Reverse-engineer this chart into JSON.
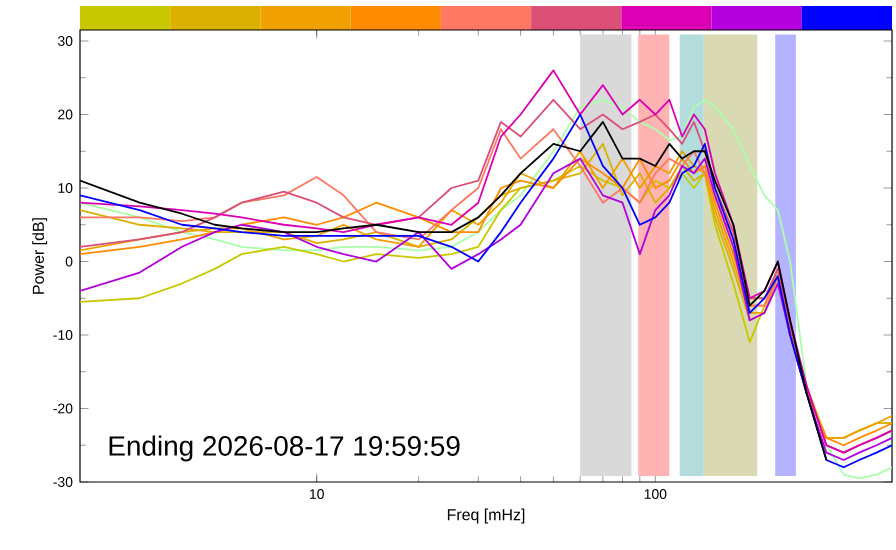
{
  "chart_data": {
    "type": "line",
    "xlabel": "Freq [mHz]",
    "ylabel": "Power [dB]",
    "log": "x",
    "x": [
      2,
      3,
      4,
      5,
      6,
      8,
      10,
      12,
      15,
      20,
      25,
      30,
      35,
      40,
      50,
      60,
      70,
      80,
      90,
      100,
      110,
      120,
      130,
      140,
      150,
      170,
      190,
      210,
      230,
      250,
      280,
      320,
      360,
      400,
      450,
      500
    ],
    "xlim": [
      2,
      500
    ],
    "xticks": [
      10,
      100
    ],
    "ylim": [
      -30,
      31.5
    ],
    "yticks": [
      -30,
      -20,
      -10,
      0,
      10,
      20,
      30
    ],
    "series": [
      {
        "color": "#aaffaa",
        "values": [
          8,
          6,
          4,
          3,
          2,
          1.5,
          1.5,
          2,
          2,
          1.5,
          2,
          4,
          7,
          9,
          15,
          21,
          22,
          21,
          19,
          18,
          16.5,
          17,
          21,
          22,
          21,
          18,
          13,
          9,
          7,
          0,
          -17,
          -25,
          -29,
          -29.5,
          -29,
          -28
        ]
      },
      {
        "color": "#c8c800",
        "values": [
          -5.5,
          -5,
          -3,
          -1,
          1,
          2,
          1,
          0,
          1,
          0.5,
          1,
          2,
          7,
          10,
          11,
          13,
          11,
          10,
          8,
          11,
          10,
          12,
          10,
          12,
          5,
          -3,
          -11,
          -6,
          -2,
          -9,
          -17,
          -24,
          -24,
          -23,
          -22,
          -22
        ]
      },
      {
        "color": "#dcb000",
        "values": [
          7,
          5,
          4.5,
          4,
          4,
          4,
          2.5,
          3,
          4,
          2,
          3,
          6,
          9,
          10,
          11,
          12,
          16,
          9,
          12,
          8,
          10,
          13,
          11,
          12,
          6,
          -1,
          -8,
          -7,
          -2,
          -10,
          -18,
          -24,
          -24,
          -23,
          -22,
          -22
        ]
      },
      {
        "color": "#f0a000",
        "values": [
          1.5,
          3,
          4,
          4.5,
          4.5,
          3,
          3.5,
          5,
          3,
          2,
          7,
          5,
          8,
          12,
          10,
          15,
          10,
          14,
          10,
          13,
          12,
          15,
          13,
          12,
          7,
          0,
          -7,
          -7,
          -2,
          -10,
          -18,
          -24,
          -24,
          -23,
          -22,
          -21
        ]
      },
      {
        "color": "#ff8c00",
        "values": [
          1,
          2,
          3,
          4,
          5,
          6,
          5,
          6,
          8,
          6,
          4,
          4,
          10,
          11,
          10,
          14,
          12,
          10,
          14,
          10,
          11,
          14,
          12,
          13,
          8,
          1,
          -6,
          -6,
          -1,
          -10,
          -18,
          -24,
          -25,
          -24,
          -23,
          -22
        ]
      },
      {
        "color": "#ff7864",
        "values": [
          6,
          6,
          5.5,
          6,
          8,
          9,
          11.5,
          9,
          4,
          3,
          7,
          10,
          18,
          14,
          18,
          13,
          8,
          10,
          8,
          12,
          14,
          13,
          15,
          12,
          9,
          3,
          -6,
          -6,
          -2,
          -9,
          -17,
          -25,
          -26,
          -25,
          -24,
          -23
        ]
      },
      {
        "color": "#dc5078",
        "values": [
          2,
          3,
          4,
          6,
          8,
          9.5,
          8,
          6,
          5,
          6,
          10,
          11,
          19,
          17,
          22,
          18,
          20,
          18,
          19,
          20,
          18,
          16,
          19,
          15,
          10,
          4,
          -5,
          -5,
          -1,
          -9,
          -17,
          -25,
          -26,
          -25,
          -24,
          -23
        ]
      },
      {
        "color": "#dc00b4",
        "values": [
          8,
          7.5,
          7,
          6.5,
          6,
          5,
          4.5,
          4,
          5,
          6,
          5,
          8,
          17,
          20,
          26,
          20,
          24,
          20,
          22,
          20,
          22,
          17,
          20,
          18,
          12,
          5,
          -5,
          -4,
          0,
          -8,
          -17,
          -25,
          -26,
          -25,
          -24,
          -23
        ]
      },
      {
        "color": "#b400dc",
        "values": [
          -4,
          -1.5,
          2,
          4,
          5,
          4,
          2,
          1,
          0,
          4,
          -1,
          1,
          3,
          5,
          12,
          14,
          9,
          8,
          1,
          7,
          9,
          13,
          12,
          14,
          9,
          2,
          -8,
          -7,
          -3,
          -10,
          -18,
          -26,
          -27,
          -26,
          -25,
          -24
        ]
      },
      {
        "color": "#0000ff",
        "values": [
          9,
          7,
          5,
          4.5,
          4,
          3.5,
          3.5,
          3.5,
          3.5,
          3.5,
          2,
          0,
          4,
          8,
          14,
          20,
          13,
          10,
          5,
          6,
          8,
          12,
          13,
          16,
          10,
          3,
          -7,
          -5,
          -2,
          -10,
          -18,
          -27,
          -28,
          -27,
          -26,
          -25
        ]
      },
      {
        "color": "#000000",
        "values": [
          11,
          8,
          6.5,
          5,
          4.5,
          4,
          4,
          4.5,
          5,
          4,
          4,
          6,
          9,
          12,
          16,
          15,
          19,
          14,
          14,
          13,
          16,
          14,
          15,
          15,
          11,
          5,
          -6,
          -4,
          0,
          -8,
          -18,
          -27,
          null,
          null,
          null,
          null
        ]
      }
    ],
    "bands": [
      {
        "axis": "x",
        "from": 60,
        "to": 85,
        "color": "#d9d9d9"
      },
      {
        "axis": "x",
        "from": 89,
        "to": 110,
        "color": "#ffb3b3"
      },
      {
        "axis": "x",
        "from": 118,
        "to": 139,
        "color": "#b3dcdc"
      },
      {
        "axis": "x",
        "from": 139,
        "to": 200,
        "color": "#d9d9b3"
      },
      {
        "axis": "x",
        "from": 226,
        "to": 260,
        "color": "#b3b3ff"
      }
    ],
    "annotations": [
      "Ending 2026-08-17 19:59:59"
    ]
  }
}
